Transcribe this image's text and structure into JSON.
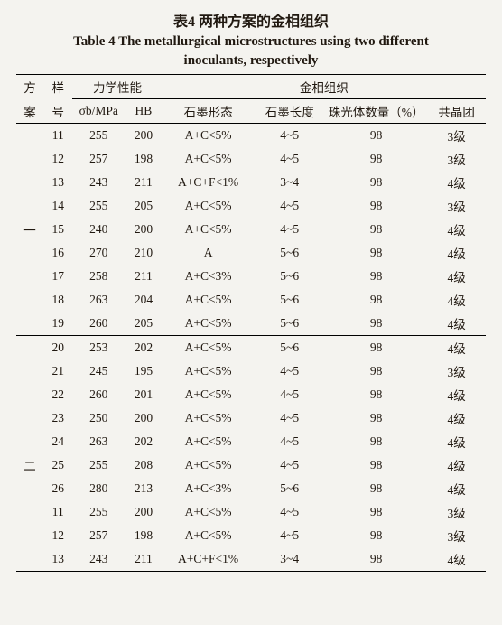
{
  "title_cn": "表4  两种方案的金相组织",
  "title_en_line1": "Table 4 The metallurgical microstructures using two different",
  "title_en_line2": "inoculants, respectively",
  "headers": {
    "plan": "方",
    "plan2": "案",
    "sample": "样",
    "sample2": "号",
    "mech": "力学性能",
    "sigma": "σb/MPa",
    "hb": "HB",
    "micro": "金相组织",
    "graphite_form": "石墨形态",
    "graphite_len": "石墨长度",
    "pearlite": "珠光体数量（%）",
    "eutectic": "共晶团"
  },
  "group1_label": "一",
  "group2_label": "二",
  "rows": [
    {
      "g": 1,
      "s": "11",
      "mpa": "255",
      "hb": "200",
      "gf": "A+C<5%",
      "gl": "4~5",
      "pe": "98",
      "eu": "3级"
    },
    {
      "g": 1,
      "s": "12",
      "mpa": "257",
      "hb": "198",
      "gf": "A+C<5%",
      "gl": "4~5",
      "pe": "98",
      "eu": "3级"
    },
    {
      "g": 1,
      "s": "13",
      "mpa": "243",
      "hb": "211",
      "gf": "A+C+F<1%",
      "gl": "3~4",
      "pe": "98",
      "eu": "4级"
    },
    {
      "g": 1,
      "s": "14",
      "mpa": "255",
      "hb": "205",
      "gf": "A+C<5%",
      "gl": "4~5",
      "pe": "98",
      "eu": "3级"
    },
    {
      "g": 1,
      "s": "15",
      "mpa": "240",
      "hb": "200",
      "gf": "A+C<5%",
      "gl": "4~5",
      "pe": "98",
      "eu": "4级",
      "mid": true
    },
    {
      "g": 1,
      "s": "16",
      "mpa": "270",
      "hb": "210",
      "gf": "A",
      "gl": "5~6",
      "pe": "98",
      "eu": "4级"
    },
    {
      "g": 1,
      "s": "17",
      "mpa": "258",
      "hb": "211",
      "gf": "A+C<3%",
      "gl": "5~6",
      "pe": "98",
      "eu": "4级"
    },
    {
      "g": 1,
      "s": "18",
      "mpa": "263",
      "hb": "204",
      "gf": "A+C<5%",
      "gl": "5~6",
      "pe": "98",
      "eu": "4级"
    },
    {
      "g": 1,
      "s": "19",
      "mpa": "260",
      "hb": "205",
      "gf": "A+C<5%",
      "gl": "5~6",
      "pe": "98",
      "eu": "4级"
    },
    {
      "g": 2,
      "s": "20",
      "mpa": "253",
      "hb": "202",
      "gf": "A+C<5%",
      "gl": "5~6",
      "pe": "98",
      "eu": "4级",
      "sep": true
    },
    {
      "g": 2,
      "s": "21",
      "mpa": "245",
      "hb": "195",
      "gf": "A+C<5%",
      "gl": "4~5",
      "pe": "98",
      "eu": "3级"
    },
    {
      "g": 2,
      "s": "22",
      "mpa": "260",
      "hb": "201",
      "gf": "A+C<5%",
      "gl": "4~5",
      "pe": "98",
      "eu": "4级"
    },
    {
      "g": 2,
      "s": "23",
      "mpa": "250",
      "hb": "200",
      "gf": "A+C<5%",
      "gl": "4~5",
      "pe": "98",
      "eu": "4级"
    },
    {
      "g": 2,
      "s": "24",
      "mpa": "263",
      "hb": "202",
      "gf": "A+C<5%",
      "gl": "4~5",
      "pe": "98",
      "eu": "4级"
    },
    {
      "g": 2,
      "s": "25",
      "mpa": "255",
      "hb": "208",
      "gf": "A+C<5%",
      "gl": "4~5",
      "pe": "98",
      "eu": "4级",
      "mid": true
    },
    {
      "g": 2,
      "s": "26",
      "mpa": "280",
      "hb": "213",
      "gf": "A+C<3%",
      "gl": "5~6",
      "pe": "98",
      "eu": "4级"
    },
    {
      "g": 2,
      "s": "11",
      "mpa": "255",
      "hb": "200",
      "gf": "A+C<5%",
      "gl": "4~5",
      "pe": "98",
      "eu": "3级"
    },
    {
      "g": 2,
      "s": "12",
      "mpa": "257",
      "hb": "198",
      "gf": "A+C<5%",
      "gl": "4~5",
      "pe": "98",
      "eu": "3级"
    },
    {
      "g": 2,
      "s": "13",
      "mpa": "243",
      "hb": "211",
      "gf": "A+C+F<1%",
      "gl": "3~4",
      "pe": "98",
      "eu": "4级"
    }
  ]
}
